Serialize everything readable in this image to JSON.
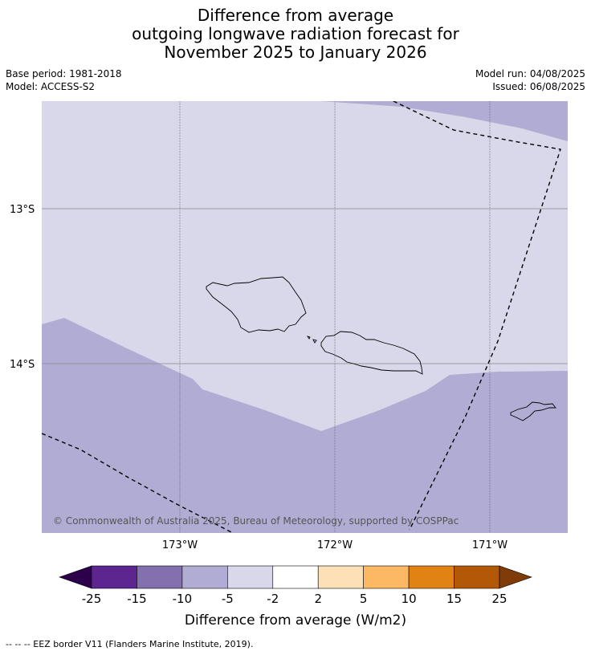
{
  "title": {
    "line1": "Difference from average",
    "line2": "outgoing longwave radiation forecast for",
    "line3": "November 2025 to January 2026"
  },
  "meta": {
    "base_period": "Base period: 1981-2018",
    "model": "Model: ACCESS-S2",
    "model_run": "Model run: 04/08/2025",
    "issued": "Issued: 06/08/2025"
  },
  "map": {
    "lat_labels": [
      "13°S",
      "14°S"
    ],
    "lon_labels": [
      "173°W",
      "172°W",
      "171°W"
    ],
    "copyright": "© Commonwealth of Australia 2025, Bureau of Meteorology, supported by COSPPac",
    "fill_colors": {
      "near_average": "#d8d8ea",
      "below_average": "#b1acd3"
    }
  },
  "colorbar": {
    "ticks": [
      "-25",
      "-15",
      "-10",
      "-5",
      "-2",
      "2",
      "5",
      "10",
      "15",
      "25"
    ],
    "colors": [
      "#2d004b",
      "#5c2590",
      "#8271ae",
      "#b1acd3",
      "#d8d8ea",
      "#ffffff",
      "#fee0b6",
      "#fdb863",
      "#e08214",
      "#b35806",
      "#7f3b08"
    ],
    "label": "Difference from average (W/m2)"
  },
  "footnote": "--  --  -- EEZ border V11 (Flanders Marine Institute, 2019)."
}
